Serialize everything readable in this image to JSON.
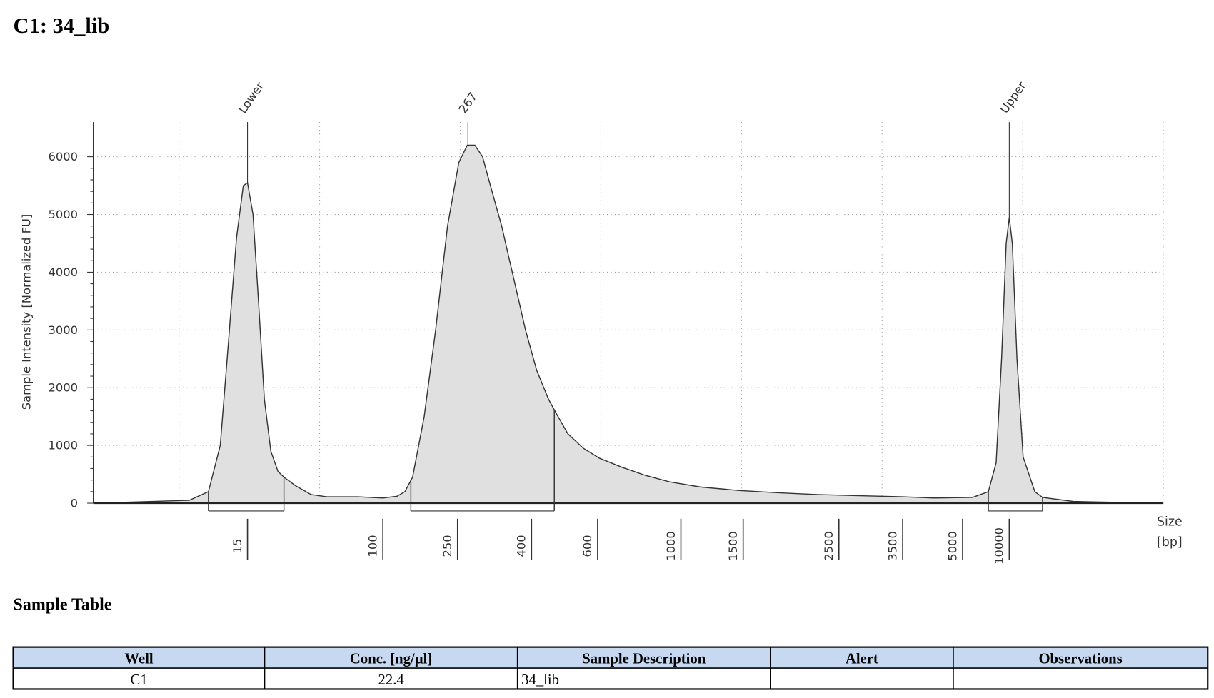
{
  "header": {
    "title": "C1: 34_lib"
  },
  "chart_data": {
    "type": "area",
    "y_label": "Sample Intensity [Normalized FU]",
    "x_label": [
      "Size",
      "[bp]"
    ],
    "x": [
      2,
      7,
      9,
      10.5,
      11.7,
      13,
      14.2,
      15,
      16.2,
      17.5,
      19,
      20.8,
      23,
      25,
      29.5,
      36.6,
      45.6,
      70.5,
      100,
      119,
      131,
      144,
      166,
      191,
      221,
      252,
      266,
      279,
      293,
      308,
      331,
      357,
      385,
      413,
      444,
      466,
      500,
      550,
      606,
      698,
      806,
      931,
      1135,
      1462,
      1808,
      2223,
      2736,
      3500,
      4220,
      5800,
      7330,
      8230,
      8920,
      9550,
      10000,
      10470,
      11220,
      12300,
      14650,
      16440,
      26100,
      100000
    ],
    "values": [
      0,
      50,
      200,
      1000,
      2800,
      4600,
      5500,
      5550,
      5000,
      3500,
      1800,
      900,
      550,
      450,
      300,
      150,
      110,
      110,
      90,
      120,
      200,
      450,
      1500,
      3000,
      4800,
      5900,
      6200,
      6200,
      6000,
      5500,
      4800,
      3900,
      3000,
      2300,
      1800,
      1550,
      1200,
      950,
      780,
      620,
      480,
      370,
      280,
      220,
      180,
      150,
      130,
      110,
      90,
      100,
      200,
      700,
      2500,
      4500,
      4950,
      4500,
      2500,
      800,
      200,
      100,
      30,
      0
    ],
    "color": "#e0e0e0",
    "line_color": "#333333",
    "xlim": [
      2,
      100000
    ],
    "xticks": [
      15,
      100,
      250,
      400,
      600,
      1000,
      1500,
      2500,
      3500,
      5000,
      10000
    ],
    "ylim": [
      0,
      6600
    ],
    "yticks": [
      0,
      1000,
      2000,
      3000,
      4000,
      5000,
      6000
    ],
    "grid": true,
    "peaks": [
      {
        "label": "Lower",
        "x": 15,
        "value": 5550
      },
      {
        "label": "267",
        "x": 267,
        "value": 6200
      },
      {
        "label": "Upper",
        "x": 10000,
        "value": 4950
      }
    ],
    "regions": [
      {
        "from": 9,
        "to": 25
      },
      {
        "from": 141,
        "to": 460
      },
      {
        "from": 7330,
        "to": 16440
      }
    ]
  },
  "table": {
    "title": "Sample Table",
    "columns": [
      "Well",
      "Conc. [ng/µl]",
      "Sample Description",
      "Alert",
      "Observations"
    ],
    "rows": [
      [
        "C1",
        22.4,
        "34_lib",
        "",
        ""
      ]
    ]
  }
}
